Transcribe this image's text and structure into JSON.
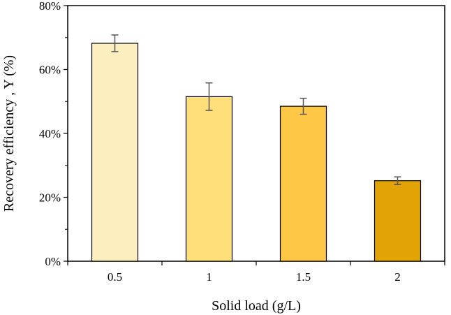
{
  "chart_data": {
    "type": "bar",
    "title": "",
    "xlabel": "Solid load (g/L)",
    "ylabel": "Recovery efficiency , Y (%)",
    "categories": [
      "0.5",
      "1",
      "1.5",
      "2"
    ],
    "values": [
      68.2,
      51.5,
      48.5,
      25.2
    ],
    "errors": [
      2.6,
      4.3,
      2.5,
      1.2
    ],
    "bar_colors": [
      "#fdeec0",
      "#fedf7a",
      "#fec745",
      "#e1a306"
    ],
    "ylim": [
      0,
      80
    ],
    "yticks": [
      0,
      20,
      40,
      60,
      80
    ],
    "ytick_labels": [
      "0%",
      "20%",
      "40%",
      "60%",
      "80%"
    ],
    "grid": false,
    "legend": "none"
  }
}
